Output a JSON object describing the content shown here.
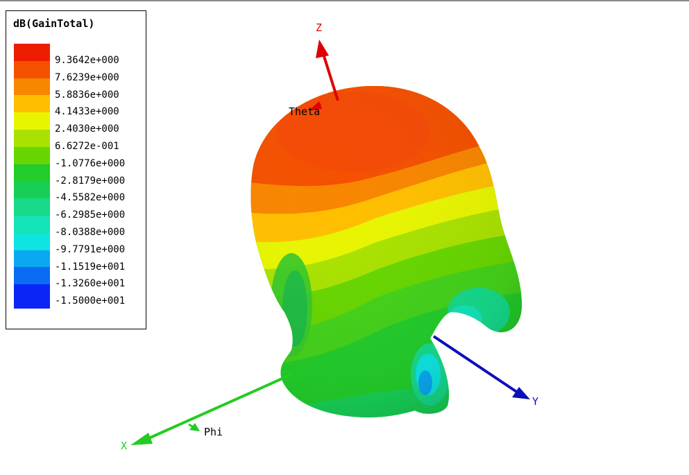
{
  "legend": {
    "title": "dB(GainTotal)",
    "entries": [
      {
        "value": "9.3642e+000",
        "color": "#ee1d00"
      },
      {
        "value": "7.6239e+000",
        "color": "#f45000"
      },
      {
        "value": "5.8836e+000",
        "color": "#f88600"
      },
      {
        "value": "4.1433e+000",
        "color": "#ffbf00"
      },
      {
        "value": "2.4030e+000",
        "color": "#e8f500"
      },
      {
        "value": "6.6272e-001",
        "color": "#a9e200"
      },
      {
        "value": "-1.0776e+000",
        "color": "#67d600"
      },
      {
        "value": "-2.8179e+000",
        "color": "#22cc2a"
      },
      {
        "value": "-4.5582e+000",
        "color": "#18cf55"
      },
      {
        "value": "-6.2985e+000",
        "color": "#16d98a"
      },
      {
        "value": "-8.0388e+000",
        "color": "#14e3b8"
      },
      {
        "value": "-9.7791e+000",
        "color": "#0ee4e0"
      },
      {
        "value": "-1.1519e+001",
        "color": "#0aa8f0"
      },
      {
        "value": "-1.3260e+001",
        "color": "#0a6cf3"
      },
      {
        "value": "-1.5000e+001",
        "color": "#0a25f5"
      }
    ]
  },
  "axes": {
    "z": {
      "label": "Z",
      "color": "#dd0000"
    },
    "y": {
      "label": "Y",
      "color": "#0b10b8"
    },
    "x": {
      "label": "X",
      "color": "#22cc22"
    },
    "theta": {
      "label": "Theta"
    },
    "phi": {
      "label": "Phi"
    }
  }
}
